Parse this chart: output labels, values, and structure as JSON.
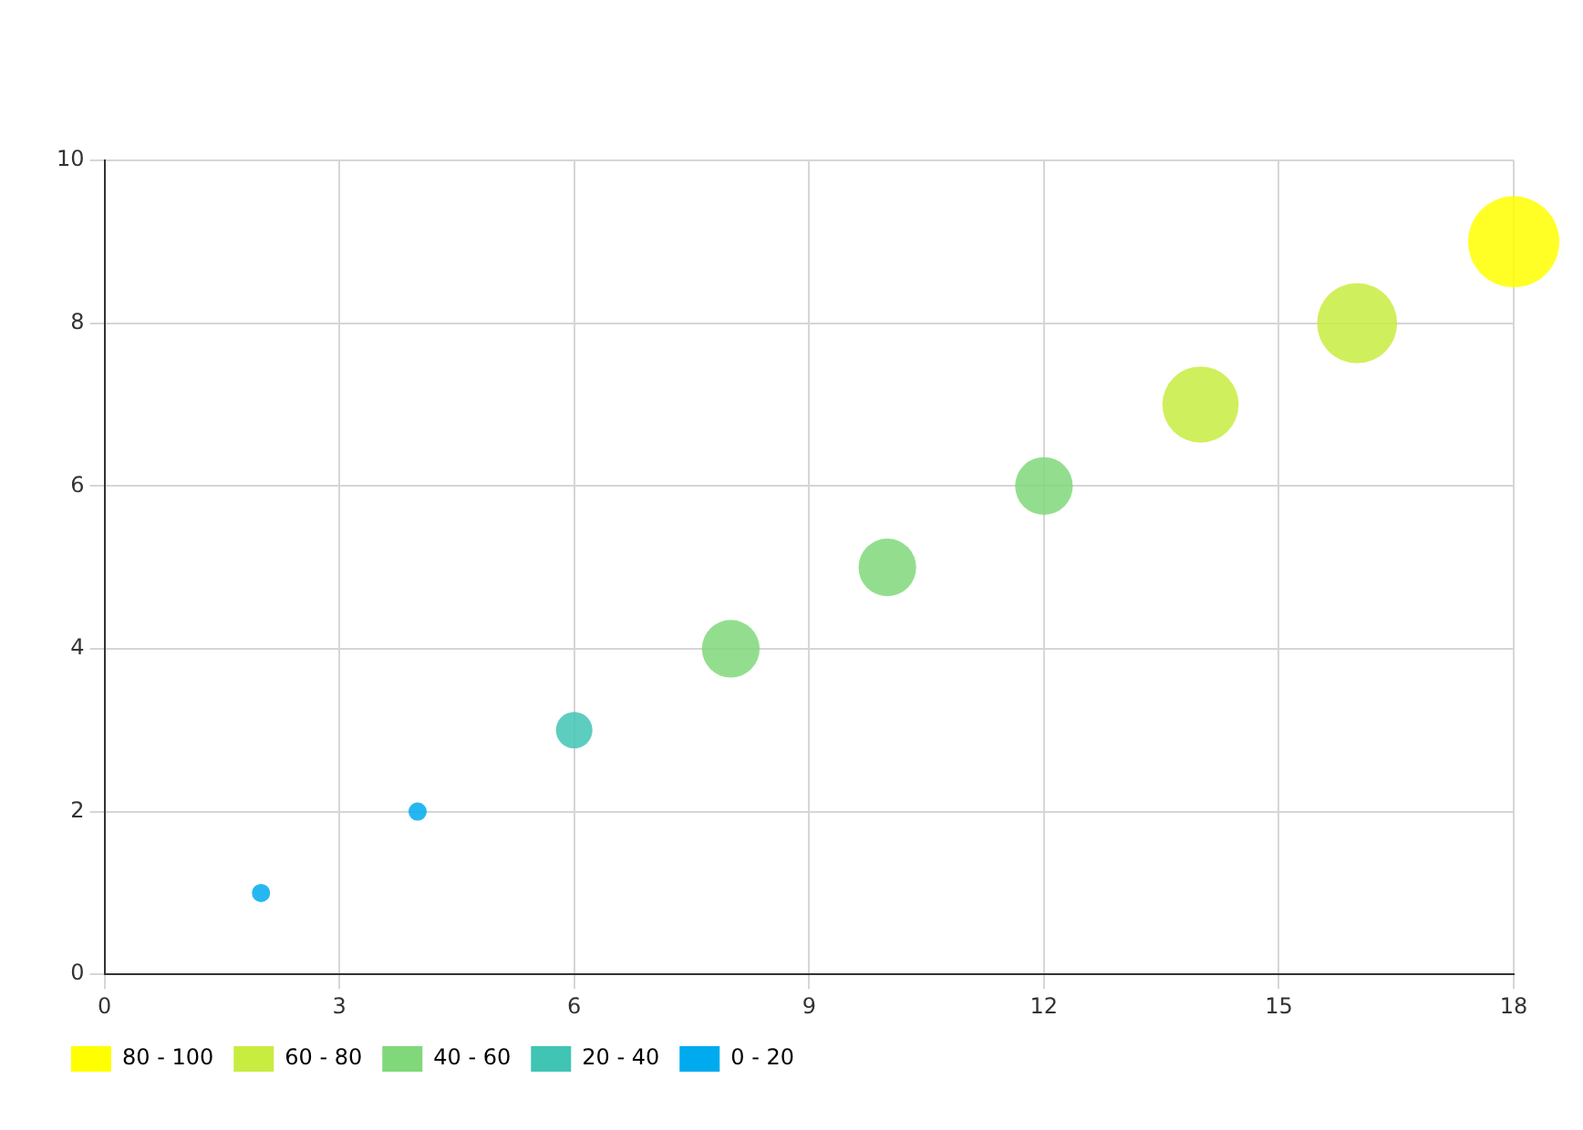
{
  "chart_data": {
    "type": "bubble",
    "xlim": [
      0,
      18
    ],
    "xticks": [
      0,
      3,
      6,
      9,
      12,
      15,
      18
    ],
    "ylim": [
      0,
      10
    ],
    "yticks": [
      0,
      2,
      4,
      6,
      8,
      10
    ],
    "grid": true,
    "legend": "bottom left",
    "series": [
      {
        "name": "80 - 100",
        "color": "#ffff00",
        "x": [
          18
        ],
        "values": [
          9
        ],
        "sizes": [
          1
        ]
      },
      {
        "name": "60 - 80",
        "color": "#c8ec40",
        "x": [
          14,
          16
        ],
        "values": [
          7,
          8
        ],
        "sizes": [
          0.7,
          0.77
        ]
      },
      {
        "name": "40 - 60",
        "color": "#80d87a",
        "x": [
          8,
          10,
          12
        ],
        "values": [
          4,
          5,
          6
        ],
        "sizes": [
          0.4,
          0.4,
          0.4
        ]
      },
      {
        "name": "20 - 40",
        "color": "#40c4b4",
        "x": [
          6
        ],
        "values": [
          3
        ],
        "sizes": [
          0.16
        ]
      },
      {
        "name": "0 - 20",
        "color": "#00aaee",
        "x": [
          2,
          4
        ],
        "values": [
          1,
          2
        ],
        "sizes": [
          0.04,
          0.04
        ]
      }
    ]
  }
}
